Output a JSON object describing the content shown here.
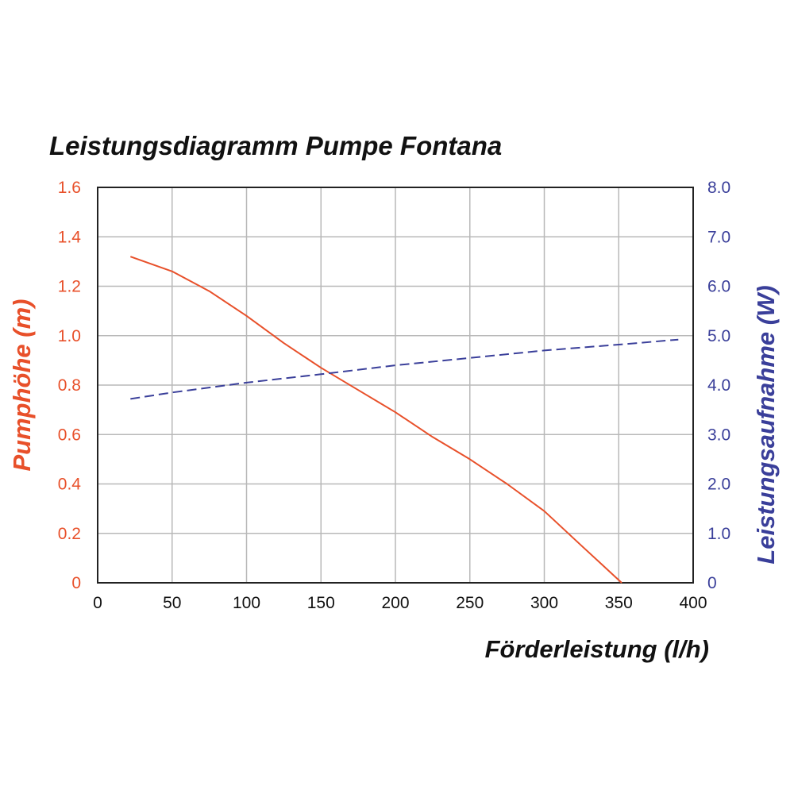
{
  "chart_data": {
    "type": "line",
    "title": "Leistungsdiagramm Pumpe Fontana",
    "xlabel": "Förderleistung (l/h)",
    "ylabel_left": "Pumphöhe (m)",
    "ylabel_right": "Leistungsaufnahme (W)",
    "xlim": [
      0,
      400
    ],
    "ylim_left": [
      0,
      1.6
    ],
    "ylim_right": [
      0,
      8.0
    ],
    "x_ticks": [
      "0",
      "50",
      "100",
      "150",
      "200",
      "250",
      "300",
      "350",
      "400"
    ],
    "y_left_ticks": [
      "0",
      "0.2",
      "0.4",
      "0.6",
      "0.8",
      "1.0",
      "1.2",
      "1.4",
      "1.6"
    ],
    "y_right_ticks": [
      "0",
      "1.0",
      "2.0",
      "3.0",
      "4.0",
      "5.0",
      "6.0",
      "7.0",
      "8.0"
    ],
    "grid": true,
    "colors": {
      "left_axis": "#e8502a",
      "right_axis": "#3a3f9a",
      "frame": "#222222"
    },
    "series": [
      {
        "name": "Pumphöhe",
        "axis": "left",
        "style": "solid",
        "x": [
          22,
          50,
          75,
          100,
          125,
          150,
          175,
          200,
          225,
          250,
          275,
          300,
          325,
          352
        ],
        "y": [
          1.32,
          1.26,
          1.18,
          1.08,
          0.97,
          0.87,
          0.78,
          0.69,
          0.59,
          0.5,
          0.4,
          0.29,
          0.15,
          0.0
        ]
      },
      {
        "name": "Leistungsaufnahme",
        "axis": "right",
        "style": "dashed",
        "x": [
          22,
          50,
          100,
          150,
          200,
          250,
          300,
          350,
          390
        ],
        "y": [
          3.72,
          3.85,
          4.05,
          4.22,
          4.4,
          4.55,
          4.7,
          4.82,
          4.92
        ]
      }
    ]
  }
}
